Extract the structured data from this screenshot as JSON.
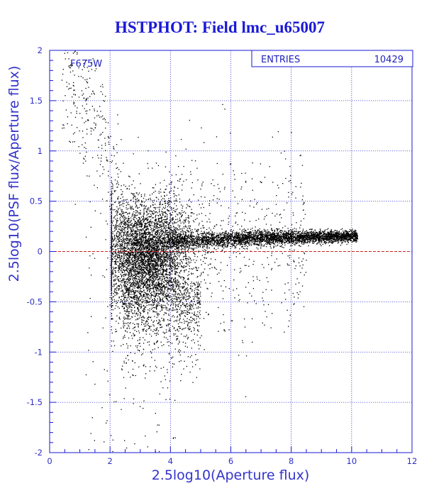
{
  "chart_data": {
    "type": "scatter",
    "title": "HSTPHOT: Field lmc_u65007",
    "xlabel": "2.5log10(Aperture flux)",
    "ylabel": "2.5log10(PSF flux/Aperture flux)",
    "filter_label": "F675W",
    "xlim": [
      0,
      12
    ],
    "ylim": [
      -2,
      2
    ],
    "x_ticks": [
      "0",
      "2",
      "4",
      "6",
      "8",
      "10",
      "12"
    ],
    "y_ticks": [
      "2",
      "1.5",
      "1",
      "0.5",
      "0",
      "-0.5",
      "-1",
      "-1.5",
      "-2"
    ],
    "grid": true,
    "reference_line": {
      "y": 0,
      "color": "#cc2222"
    },
    "stats_box": {
      "label": "ENTRIES",
      "value": "10429"
    },
    "n_points_drawn": 10429,
    "description_of_distribution": [
      {
        "x_range": [
          0.3,
          2.0
        ],
        "y_typical": [
          0.6,
          1.9
        ],
        "note": "sparse bright stars, upper left"
      },
      {
        "x_range": [
          2.3,
          5.5
        ],
        "y_typical": [
          -0.7,
          0.5
        ],
        "note": "dense clump centered near (3.5, 0.0)"
      },
      {
        "x_range": [
          4,
          10.2
        ],
        "y_typical": [
          0.12,
          0.18
        ],
        "note": "narrow horizontal sequence near y = 0.15"
      }
    ]
  },
  "colors": {
    "axis": "#1a1ad6",
    "grid": "#3a3ad0",
    "points": "#000000",
    "zero_line": "#cc2222"
  }
}
